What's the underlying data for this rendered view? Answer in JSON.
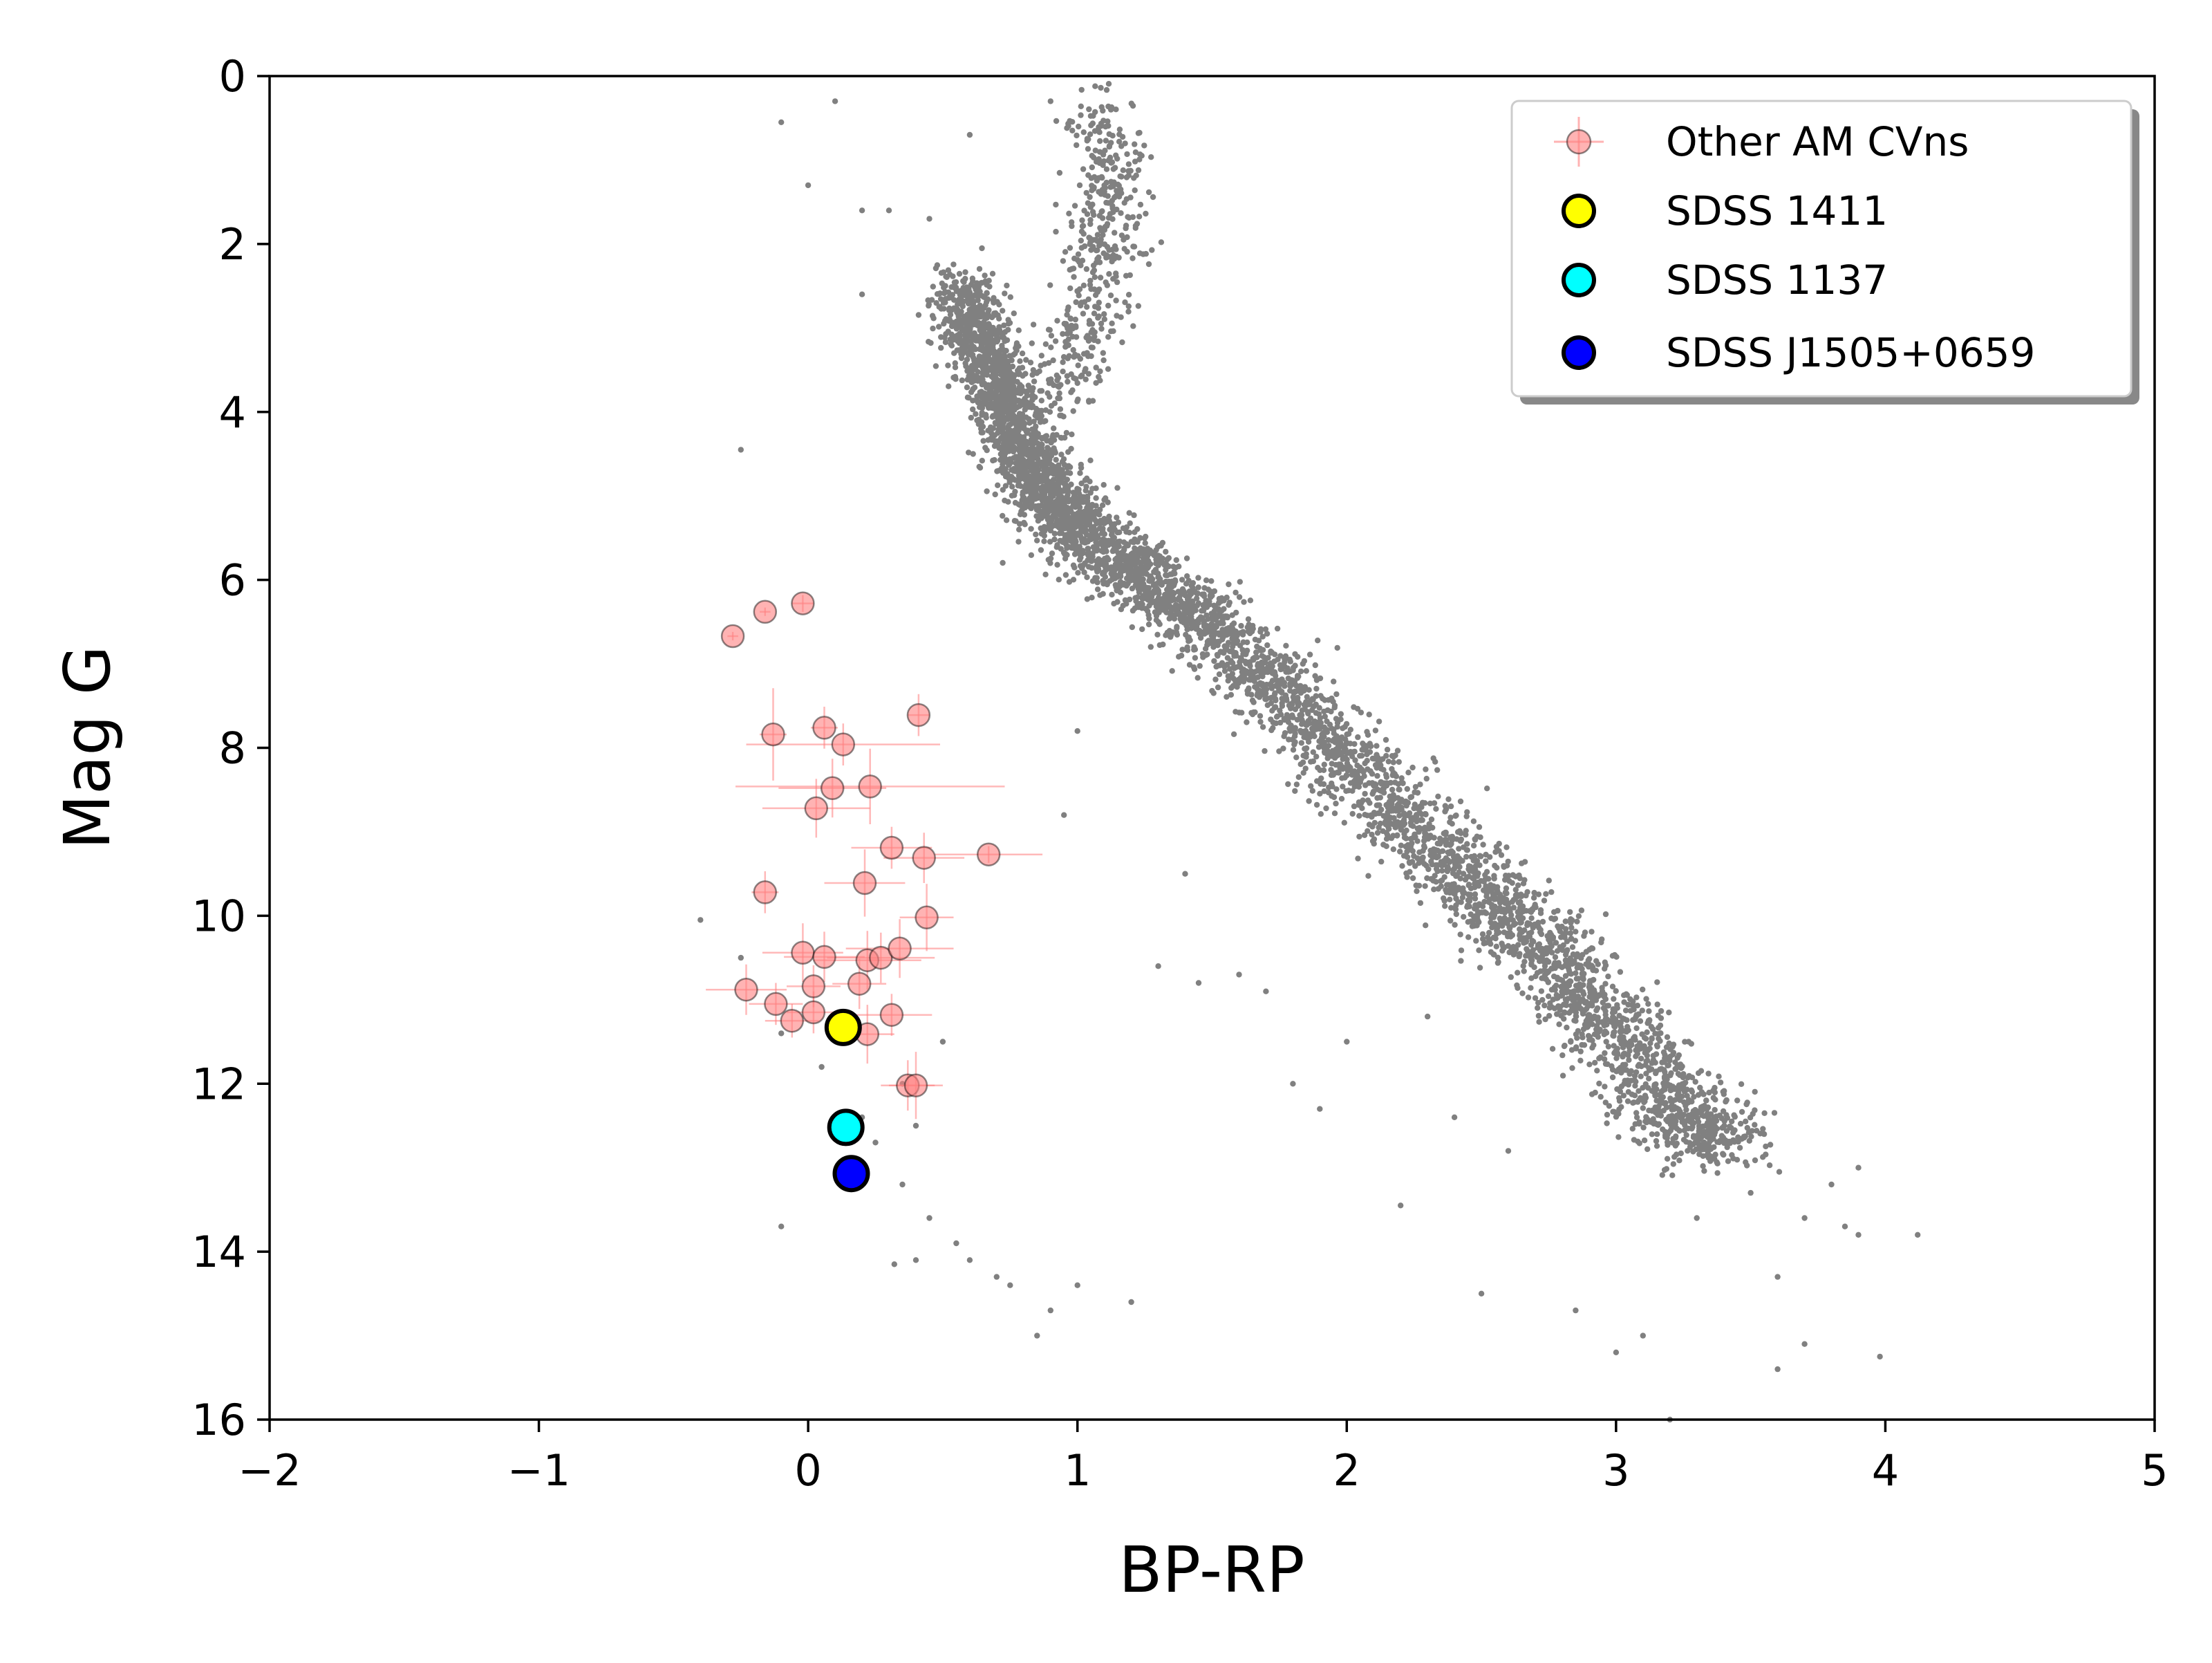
{
  "chart_data": {
    "type": "scatter",
    "title": "",
    "xlabel": "BP-RP",
    "ylabel": "Mag G",
    "xlim": [
      -2,
      5
    ],
    "ylim": [
      16,
      0
    ],
    "y_inverted": true,
    "xticks": [
      -2,
      -1,
      0,
      1,
      2,
      3,
      4,
      5
    ],
    "xtick_labels": [
      "−2",
      "−1",
      "0",
      "1",
      "2",
      "3",
      "4",
      "5"
    ],
    "yticks": [
      0,
      2,
      4,
      6,
      8,
      10,
      12,
      14,
      16
    ],
    "ytick_labels": [
      "0",
      "2",
      "4",
      "6",
      "8",
      "10",
      "12",
      "14",
      "16"
    ],
    "grid": false,
    "legend_position": "top-right",
    "legend": [
      "Other AM CVns",
      "SDSS 1411",
      "SDSS 1137",
      "SDSS J1505+0659"
    ],
    "background_stars": {
      "color": "#808080",
      "main_sequence_ridge": [
        [
          0.55,
          2.5
        ],
        [
          0.65,
          3.2
        ],
        [
          0.72,
          3.8
        ],
        [
          0.8,
          4.5
        ],
        [
          0.9,
          5.0
        ],
        [
          1.05,
          5.5
        ],
        [
          1.25,
          6.0
        ],
        [
          1.5,
          6.6
        ],
        [
          1.8,
          7.5
        ],
        [
          2.1,
          8.5
        ],
        [
          2.4,
          9.4
        ],
        [
          2.7,
          10.3
        ],
        [
          2.95,
          11.2
        ],
        [
          3.2,
          12.2
        ],
        [
          3.4,
          12.8
        ]
      ],
      "giant_branch_ridge": [
        [
          1.1,
          0.4
        ],
        [
          1.12,
          1.2
        ],
        [
          1.1,
          2.0
        ],
        [
          1.05,
          2.8
        ],
        [
          0.95,
          3.8
        ]
      ],
      "scattered_points": [
        [
          -0.1,
          0.55
        ],
        [
          0.1,
          0.3
        ],
        [
          0.0,
          1.3
        ],
        [
          0.2,
          2.6
        ],
        [
          0.2,
          1.6
        ],
        [
          0.3,
          1.6
        ],
        [
          -0.25,
          4.45
        ],
        [
          0.6,
          0.7
        ],
        [
          0.9,
          0.3
        ],
        [
          0.45,
          1.7
        ],
        [
          0.95,
          8.8
        ],
        [
          -0.4,
          10.05
        ],
        [
          -0.25,
          10.5
        ],
        [
          -0.1,
          11.4
        ],
        [
          0.05,
          11.8
        ],
        [
          0.2,
          12.4
        ],
        [
          0.25,
          12.7
        ],
        [
          0.35,
          13.2
        ],
        [
          0.45,
          13.6
        ],
        [
          0.55,
          13.9
        ],
        [
          0.6,
          14.1
        ],
        [
          0.7,
          14.3
        ],
        [
          0.75,
          14.4
        ],
        [
          0.4,
          12.5
        ],
        [
          0.4,
          14.1
        ],
        [
          0.32,
          14.15
        ],
        [
          -0.1,
          13.7
        ],
        [
          0.85,
          15.0
        ],
        [
          0.9,
          14.7
        ],
        [
          1.0,
          14.4
        ],
        [
          1.2,
          14.6
        ],
        [
          0.35,
          12.0
        ],
        [
          0.5,
          11.5
        ],
        [
          1.3,
          10.6
        ],
        [
          1.45,
          10.8
        ],
        [
          1.6,
          10.7
        ],
        [
          1.7,
          10.9
        ],
        [
          1.9,
          12.3
        ],
        [
          2.2,
          13.45
        ],
        [
          2.4,
          12.4
        ],
        [
          2.5,
          14.5
        ],
        [
          2.85,
          14.7
        ],
        [
          3.0,
          15.2
        ],
        [
          3.1,
          15.0
        ],
        [
          3.2,
          16.0
        ],
        [
          3.6,
          15.4
        ],
        [
          3.7,
          15.1
        ],
        [
          3.85,
          13.7
        ],
        [
          3.9,
          13.0
        ],
        [
          3.98,
          15.25
        ],
        [
          4.12,
          13.8
        ],
        [
          3.6,
          14.3
        ],
        [
          3.7,
          13.6
        ],
        [
          3.5,
          13.3
        ],
        [
          3.3,
          13.6
        ],
        [
          1.8,
          12.0
        ],
        [
          2.0,
          11.5
        ],
        [
          2.3,
          11.2
        ],
        [
          2.6,
          12.8
        ],
        [
          1.0,
          7.8
        ],
        [
          1.4,
          9.5
        ],
        [
          3.45,
          12.2
        ],
        [
          3.55,
          12.6
        ],
        [
          3.8,
          13.2
        ],
        [
          3.9,
          13.8
        ]
      ]
    },
    "series": [
      {
        "name": "Other AM CVns",
        "marker_color": "#ff8080",
        "points": [
          {
            "x": -0.28,
            "y": 6.67,
            "xerr": 0.02,
            "yerr": 0.05
          },
          {
            "x": -0.16,
            "y": 6.38,
            "xerr": 0.02,
            "yerr": 0.05
          },
          {
            "x": -0.02,
            "y": 6.28,
            "xerr": 0.04,
            "yerr": 0.1
          },
          {
            "x": 0.41,
            "y": 7.61,
            "xerr": 0.04,
            "yerr": 0.25
          },
          {
            "x": -0.13,
            "y": 7.84,
            "xerr": 0.05,
            "yerr": 0.55
          },
          {
            "x": 0.06,
            "y": 7.76,
            "xerr": 0.05,
            "yerr": 0.25
          },
          {
            "x": 0.13,
            "y": 7.96,
            "xerr": 0.36,
            "yerr": 0.25
          },
          {
            "x": 0.09,
            "y": 8.48,
            "xerr": 0.2,
            "yerr": 0.35
          },
          {
            "x": 0.23,
            "y": 8.46,
            "xerr": 0.5,
            "yerr": 0.45
          },
          {
            "x": 0.03,
            "y": 8.72,
            "xerr": 0.2,
            "yerr": 0.35
          },
          {
            "x": 0.31,
            "y": 9.19,
            "xerr": 0.15,
            "yerr": 0.25
          },
          {
            "x": 0.43,
            "y": 9.31,
            "xerr": 0.15,
            "yerr": 0.3
          },
          {
            "x": 0.67,
            "y": 9.27,
            "xerr": 0.2,
            "yerr": 0.1
          },
          {
            "x": -0.16,
            "y": 9.72,
            "xerr": 0.05,
            "yerr": 0.25
          },
          {
            "x": 0.21,
            "y": 9.61,
            "xerr": 0.15,
            "yerr": 0.4
          },
          {
            "x": 0.44,
            "y": 10.02,
            "xerr": 0.1,
            "yerr": 0.4
          },
          {
            "x": -0.02,
            "y": 10.44,
            "xerr": 0.15,
            "yerr": 0.35
          },
          {
            "x": 0.06,
            "y": 10.49,
            "xerr": 0.15,
            "yerr": 0.3
          },
          {
            "x": 0.22,
            "y": 10.53,
            "xerr": 0.2,
            "yerr": 0.35
          },
          {
            "x": 0.27,
            "y": 10.5,
            "xerr": 0.2,
            "yerr": 0.3
          },
          {
            "x": 0.34,
            "y": 10.39,
            "xerr": 0.2,
            "yerr": 0.35
          },
          {
            "x": -0.23,
            "y": 10.88,
            "xerr": 0.15,
            "yerr": 0.3
          },
          {
            "x": 0.02,
            "y": 10.84,
            "xerr": 0.1,
            "yerr": 0.25
          },
          {
            "x": 0.19,
            "y": 10.81,
            "xerr": 0.1,
            "yerr": 0.3
          },
          {
            "x": -0.12,
            "y": 11.05,
            "xerr": 0.1,
            "yerr": 0.25
          },
          {
            "x": -0.06,
            "y": 11.25,
            "xerr": 0.1,
            "yerr": 0.2
          },
          {
            "x": 0.02,
            "y": 11.15,
            "xerr": 0.1,
            "yerr": 0.25
          },
          {
            "x": 0.31,
            "y": 11.18,
            "xerr": 0.15,
            "yerr": 0.25
          },
          {
            "x": 0.22,
            "y": 11.41,
            "xerr": 0.1,
            "yerr": 0.35
          },
          {
            "x": 0.37,
            "y": 12.02,
            "xerr": 0.1,
            "yerr": 0.3
          },
          {
            "x": 0.4,
            "y": 12.02,
            "xerr": 0.1,
            "yerr": 0.4
          }
        ]
      },
      {
        "name": "SDSS 1411",
        "marker_color": "#ffff00",
        "points": [
          {
            "x": 0.13,
            "y": 11.33
          }
        ]
      },
      {
        "name": "SDSS 1137",
        "marker_color": "#00ffff",
        "points": [
          {
            "x": 0.14,
            "y": 12.52
          }
        ]
      },
      {
        "name": "SDSS J1505+0659",
        "marker_color": "#0000ff",
        "points": [
          {
            "x": 0.16,
            "y": 13.07
          }
        ]
      }
    ]
  }
}
